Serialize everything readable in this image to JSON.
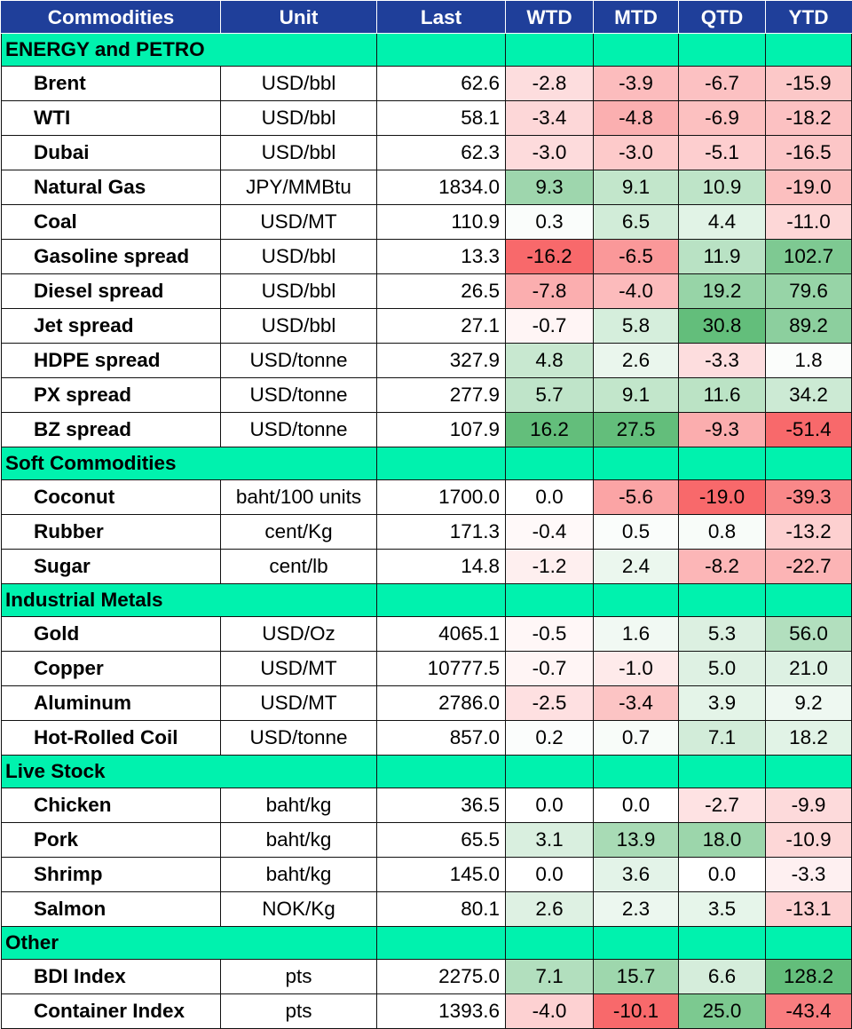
{
  "headers": [
    "Commodities",
    "Unit",
    "Last",
    "WTD",
    "MTD",
    "QTD",
    "YTD"
  ],
  "sections": [
    {
      "name": "ENERGY and PETRO",
      "rows": [
        {
          "name": "Brent",
          "unit": "USD/bbl",
          "last": "62.6",
          "wtd": "-2.8",
          "mtd": "-3.9",
          "qtd": "-6.7",
          "ytd": "-15.9"
        },
        {
          "name": "WTI",
          "unit": "USD/bbl",
          "last": "58.1",
          "wtd": "-3.4",
          "mtd": "-4.8",
          "qtd": "-6.9",
          "ytd": "-18.2"
        },
        {
          "name": "Dubai",
          "unit": "USD/bbl",
          "last": "62.3",
          "wtd": "-3.0",
          "mtd": "-3.0",
          "qtd": "-5.1",
          "ytd": "-16.5"
        },
        {
          "name": "Natural Gas",
          "unit": "JPY/MMBtu",
          "last": "1834.0",
          "wtd": "9.3",
          "mtd": "9.1",
          "qtd": "10.9",
          "ytd": "-19.0"
        },
        {
          "name": "Coal",
          "unit": "USD/MT",
          "last": "110.9",
          "wtd": "0.3",
          "mtd": "6.5",
          "qtd": "4.4",
          "ytd": "-11.0"
        },
        {
          "name": "Gasoline spread",
          "unit": "USD/bbl",
          "last": "13.3",
          "wtd": "-16.2",
          "mtd": "-6.5",
          "qtd": "11.9",
          "ytd": "102.7"
        },
        {
          "name": "Diesel spread",
          "unit": "USD/bbl",
          "last": "26.5",
          "wtd": "-7.8",
          "mtd": "-4.0",
          "qtd": "19.2",
          "ytd": "79.6"
        },
        {
          "name": "Jet spread",
          "unit": "USD/bbl",
          "last": "27.1",
          "wtd": "-0.7",
          "mtd": "5.8",
          "qtd": "30.8",
          "ytd": "89.2"
        },
        {
          "name": "HDPE spread",
          "unit": "USD/tonne",
          "last": "327.9",
          "wtd": "4.8",
          "mtd": "2.6",
          "qtd": "-3.3",
          "ytd": "1.8"
        },
        {
          "name": "PX spread",
          "unit": "USD/tonne",
          "last": "277.9",
          "wtd": "5.7",
          "mtd": "9.1",
          "qtd": "11.6",
          "ytd": "34.2"
        },
        {
          "name": "BZ spread",
          "unit": "USD/tonne",
          "last": "107.9",
          "wtd": "16.2",
          "mtd": "27.5",
          "qtd": "-9.3",
          "ytd": "-51.4"
        }
      ]
    },
    {
      "name": "Soft Commodities",
      "rows": [
        {
          "name": "Coconut",
          "unit": "baht/100 units",
          "last": "1700.0",
          "wtd": "0.0",
          "mtd": "-5.6",
          "qtd": "-19.0",
          "ytd": "-39.3"
        },
        {
          "name": "Rubber",
          "unit": "cent/Kg",
          "last": "171.3",
          "wtd": "-0.4",
          "mtd": "0.5",
          "qtd": "0.8",
          "ytd": "-13.2"
        },
        {
          "name": "Sugar",
          "unit": "cent/lb",
          "last": "14.8",
          "wtd": "-1.2",
          "mtd": "2.4",
          "qtd": "-8.2",
          "ytd": "-22.7"
        }
      ]
    },
    {
      "name": "Industrial Metals",
      "rows": [
        {
          "name": "Gold",
          "unit": "USD/Oz",
          "last": "4065.1",
          "wtd": "-0.5",
          "mtd": "1.6",
          "qtd": "5.3",
          "ytd": "56.0"
        },
        {
          "name": "Copper",
          "unit": "USD/MT",
          "last": "10777.5",
          "wtd": "-0.7",
          "mtd": "-1.0",
          "qtd": "5.0",
          "ytd": "21.0"
        },
        {
          "name": "Aluminum",
          "unit": "USD/MT",
          "last": "2786.0",
          "wtd": "-2.5",
          "mtd": "-3.4",
          "qtd": "3.9",
          "ytd": "9.2"
        },
        {
          "name": "Hot-Rolled Coil",
          "unit": "USD/tonne",
          "last": "857.0",
          "wtd": "0.2",
          "mtd": "0.7",
          "qtd": "7.1",
          "ytd": "18.2"
        }
      ]
    },
    {
      "name": "Live Stock",
      "rows": [
        {
          "name": "Chicken",
          "unit": "baht/kg",
          "last": "36.5",
          "wtd": "0.0",
          "mtd": "0.0",
          "qtd": "-2.7",
          "ytd": "-9.9"
        },
        {
          "name": "Pork",
          "unit": "baht/kg",
          "last": "65.5",
          "wtd": "3.1",
          "mtd": "13.9",
          "qtd": "18.0",
          "ytd": "-10.9"
        },
        {
          "name": "Shrimp",
          "unit": "baht/kg",
          "last": "145.0",
          "wtd": "0.0",
          "mtd": "3.6",
          "qtd": "0.0",
          "ytd": "-3.3"
        },
        {
          "name": "Salmon",
          "unit": "NOK/Kg",
          "last": "80.1",
          "wtd": "2.6",
          "mtd": "2.3",
          "qtd": "3.5",
          "ytd": "-13.1"
        }
      ]
    },
    {
      "name": "Other",
      "rows": [
        {
          "name": "BDI Index",
          "unit": "pts",
          "last": "2275.0",
          "wtd": "7.1",
          "mtd": "15.7",
          "qtd": "6.6",
          "ytd": "128.2"
        },
        {
          "name": "Container Index",
          "unit": "pts",
          "last": "1393.6",
          "wtd": "-4.0",
          "mtd": "-10.1",
          "qtd": "25.0",
          "ytd": "-43.4"
        }
      ]
    }
  ],
  "colors": {
    "header_bg": "#1f3f9a",
    "header_text": "#ffffff",
    "section_bg": "#00f2ae",
    "neutral": "#ffffff",
    "positive_max": "#63be7b",
    "negative_max": "#f8696b"
  }
}
